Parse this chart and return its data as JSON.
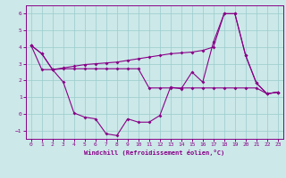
{
  "xlabel": "Windchill (Refroidissement éolien,°C)",
  "bg_color": "#cce8e8",
  "line_color": "#880088",
  "grid_color": "#99cccc",
  "xlim": [
    -0.5,
    23.5
  ],
  "ylim": [
    -1.5,
    6.5
  ],
  "xticks": [
    0,
    1,
    2,
    3,
    4,
    5,
    6,
    7,
    8,
    9,
    10,
    11,
    12,
    13,
    14,
    15,
    16,
    17,
    18,
    19,
    20,
    21,
    22,
    23
  ],
  "yticks": [
    -1,
    0,
    1,
    2,
    3,
    4,
    5,
    6
  ],
  "line1_y": [
    4.1,
    3.6,
    2.65,
    1.9,
    0.05,
    -0.2,
    -0.3,
    -1.2,
    -1.3,
    -0.3,
    -0.5,
    -0.5,
    -0.1,
    1.6,
    1.5,
    2.5,
    1.9,
    4.3,
    6.0,
    6.0,
    3.5,
    1.85,
    1.2,
    1.3
  ],
  "line2_y": [
    4.1,
    3.6,
    2.65,
    2.75,
    2.85,
    2.95,
    3.0,
    3.05,
    3.1,
    3.2,
    3.3,
    3.4,
    3.5,
    3.6,
    3.65,
    3.7,
    3.8,
    4.0,
    6.0,
    6.0,
    3.5,
    1.85,
    1.2,
    1.3
  ],
  "line3_y": [
    4.1,
    2.65,
    2.65,
    2.7,
    2.7,
    2.7,
    2.7,
    2.7,
    2.7,
    2.7,
    2.7,
    1.55,
    1.55,
    1.55,
    1.55,
    1.55,
    1.55,
    1.55,
    1.55,
    1.55,
    1.55,
    1.55,
    1.2,
    1.3
  ]
}
